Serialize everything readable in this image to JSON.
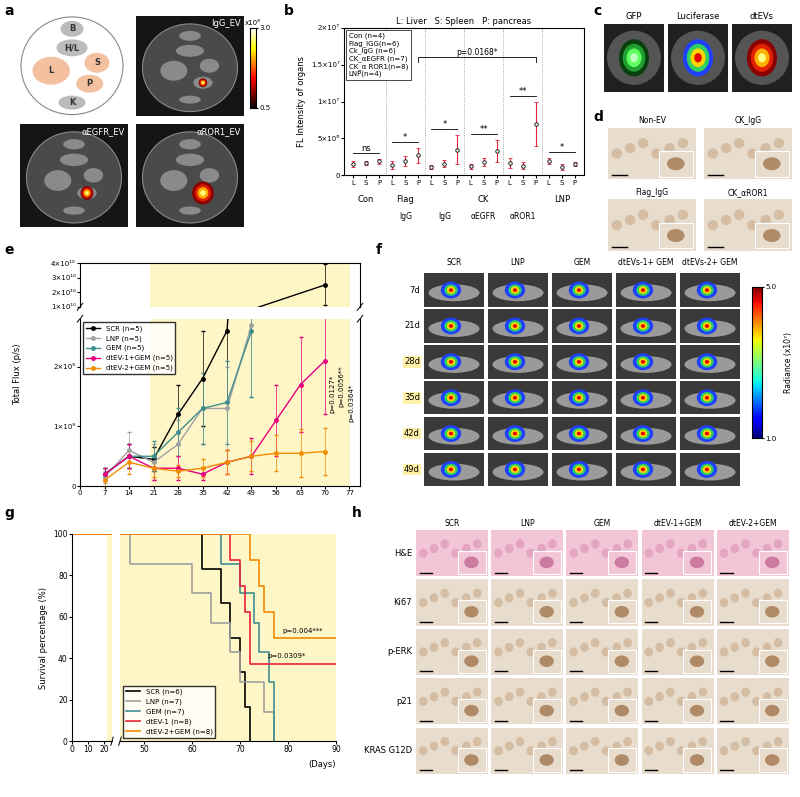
{
  "chart_data": [
    {
      "panel": "b",
      "type": "scatter",
      "header": "L: Liver   S: Spleen   P: pancreas",
      "ylabel": "FL Intensity of organs",
      "categories": [
        "L",
        "S",
        "P",
        "L",
        "S",
        "P",
        "L",
        "S",
        "P",
        "L",
        "S",
        "P",
        "L",
        "S",
        "P",
        "L",
        "S",
        "P"
      ],
      "groups": [
        {
          "label": "Con"
        },
        {
          "label": "Flag",
          "sublabel": "IgG"
        },
        {
          "label": "CK",
          "sublabel": "IgG"
        },
        {
          "label": "CK",
          "sublabel": "αEGFR"
        },
        {
          "label": "CK",
          "sublabel": "αROR1"
        },
        {
          "label": "LNP"
        }
      ],
      "values": [
        1500000,
        1700000,
        1900000,
        1400000,
        1900000,
        2700000,
        1100000,
        1600000,
        3500000,
        1200000,
        1800000,
        3300000,
        1700000,
        1300000,
        7000000,
        2000000,
        1100000,
        1500000
      ],
      "errors": [
        400000,
        300000,
        300000,
        600000,
        700000,
        1000000,
        300000,
        500000,
        2000000,
        300000,
        500000,
        1500000,
        700000,
        500000,
        3000000,
        400000,
        400000,
        300000
      ],
      "color": "#e8203a",
      "ylim": [
        0,
        20000000
      ],
      "yticks": [
        0,
        {
          "value": 5000000,
          "label": "5×10⁶"
        },
        {
          "value": 10000000,
          "label": "1×10⁷"
        },
        {
          "value": 15000000,
          "label": "1.5×10⁷"
        },
        {
          "value": 20000000,
          "label": "2×10⁷"
        }
      ],
      "legend_box": [
        "Con (n=4)",
        "Flag_IGG(n=6)",
        "Ck_IgG (n=6)",
        "CK_αEGFR (n=7)",
        "CK_α ROR1(n=8)",
        "LNP(n=4)"
      ],
      "significance": [
        "ns",
        "*",
        "*",
        "**",
        "**",
        "*"
      ],
      "comparison": "p=0.0168*"
    },
    {
      "panel": "e",
      "type": "line",
      "ylabel": "Total Flux (p/s)",
      "xlim": [
        0,
        80
      ],
      "xticks": [
        0,
        7,
        14,
        21,
        28,
        35,
        42,
        49,
        56,
        63,
        70,
        77
      ],
      "ylim": [
        0,
        40000000000.0
      ],
      "axis_break": [
        2800000000.0,
        10000000000.0
      ],
      "yticks": [
        0,
        {
          "value": 1000000000.0,
          "label": "1×10⁹"
        },
        {
          "value": 2000000000.0,
          "label": "2×10⁹"
        },
        {
          "value": 10000000000.0,
          "label": "1×10¹⁰"
        },
        {
          "value": 20000000000.0,
          "label": "2×10¹⁰"
        },
        {
          "value": 30000000000.0,
          "label": "3×10¹⁰"
        },
        {
          "value": 40000000000.0,
          "label": "4×10¹⁰"
        }
      ],
      "shaded_x": [
        20,
        77
      ],
      "legend": "upper left",
      "series": [
        {
          "name": "SCR (n=5)",
          "color": "#000000",
          "x": [
            7,
            14,
            21,
            28,
            35,
            42,
            70
          ],
          "values": [
            200000000.0,
            500000000.0,
            450000000.0,
            1200000000.0,
            1800000000.0,
            2600000000.0,
            25000000000.0
          ],
          "errors": [
            100000000.0,
            200000000.0,
            200000000.0,
            500000000.0,
            800000000.0,
            1200000000.0,
            14000000000.0
          ]
        },
        {
          "name": "LNP (n=5)",
          "color": "#a0a0a0",
          "x": [
            7,
            14,
            21,
            28,
            35,
            42,
            49
          ],
          "values": [
            150000000.0,
            600000000.0,
            400000000.0,
            700000000.0,
            1300000000.0,
            1300000000.0,
            2700000000.0
          ],
          "errors": [
            100000000.0,
            300000000.0,
            300000000.0,
            400000000.0,
            600000000.0,
            700000000.0,
            1200000000.0
          ]
        },
        {
          "name": "GEM (n=5)",
          "color": "#3f8f8f",
          "x": [
            7,
            14,
            21,
            28,
            35,
            42,
            49
          ],
          "values": [
            200000000.0,
            500000000.0,
            500000000.0,
            900000000.0,
            1300000000.0,
            1400000000.0,
            2600000000.0
          ],
          "errors": [
            100000000.0,
            200000000.0,
            250000000.0,
            400000000.0,
            600000000.0,
            700000000.0,
            1100000000.0
          ]
        },
        {
          "name": "dtEV-1+GEM (n=5)",
          "color": "#e6007e",
          "x": [
            7,
            14,
            21,
            28,
            35,
            42,
            49,
            56,
            63,
            70
          ],
          "values": [
            200000000.0,
            500000000.0,
            300000000.0,
            300000000.0,
            200000000.0,
            400000000.0,
            500000000.0,
            1100000000.0,
            1700000000.0,
            2100000000.0
          ],
          "errors": [
            100000000.0,
            200000000.0,
            200000000.0,
            200000000.0,
            100000000.0,
            200000000.0,
            300000000.0,
            600000000.0,
            800000000.0,
            900000000.0
          ]
        },
        {
          "name": "dtEV-2+GEM (n=5)",
          "color": "#f08c00",
          "x": [
            7,
            14,
            21,
            28,
            35,
            42,
            49,
            56,
            63,
            70
          ],
          "values": [
            100000000.0,
            400000000.0,
            300000000.0,
            250000000.0,
            300000000.0,
            400000000.0,
            500000000.0,
            550000000.0,
            550000000.0,
            580000000.0
          ],
          "errors": [
            100000000.0,
            200000000.0,
            150000000.0,
            100000000.0,
            150000000.0,
            200000000.0,
            250000000.0,
            300000000.0,
            400000000.0,
            400000000.0
          ]
        }
      ],
      "p_values": [
        "p=0.0127*",
        "p=0.0056**",
        "p=0.0364*"
      ]
    },
    {
      "panel": "g",
      "type": "line",
      "line_style": "steps",
      "xlabel": "(Days)",
      "ylabel": "Survival percentage (%)",
      "xlim": [
        0,
        90
      ],
      "axis_break": [
        25,
        45
      ],
      "xticks": [
        0,
        10,
        20,
        50,
        60,
        70,
        80,
        90
      ],
      "ylim": [
        0,
        100
      ],
      "yticks": [
        0,
        20,
        40,
        60,
        80,
        100
      ],
      "shaded_x": [
        22,
        90
      ],
      "legend": "lower left",
      "series": [
        {
          "name": "SCR (n=6)",
          "color": "#000000",
          "x": [
            0,
            62,
            66,
            68,
            70,
            71,
            72
          ],
          "values": [
            100,
            83.3,
            66.7,
            50,
            33.3,
            16.7,
            0
          ]
        },
        {
          "name": "LNP (n=7)",
          "color": "#a0a0a0",
          "x": [
            0,
            47,
            60,
            64,
            68,
            70,
            75,
            77
          ],
          "values": [
            100,
            85.7,
            71.4,
            57.1,
            42.9,
            28.6,
            14.3,
            0
          ]
        },
        {
          "name": "GEM (n=7)",
          "color": "#3f8f8f",
          "x": [
            0,
            66,
            70,
            73,
            74,
            76,
            77
          ],
          "values": [
            100,
            85.7,
            71.4,
            57.1,
            42.9,
            28.6,
            0
          ]
        },
        {
          "name": "dtEV-1 (n=8)",
          "color": "#e8203a",
          "x": [
            0,
            68,
            70,
            71,
            72,
            90
          ],
          "values": [
            100,
            87.5,
            75,
            62.5,
            37.5,
            37.5
          ]
        },
        {
          "name": "dtEV-2+GEM (n=8)",
          "color": "#f08c00",
          "x": [
            0,
            72,
            74,
            75,
            77,
            90
          ],
          "values": [
            100,
            87.5,
            75,
            62.5,
            50,
            50
          ]
        }
      ],
      "p_values": [
        "p=0.004***",
        "p=0.0309*"
      ]
    }
  ],
  "image_panels": [
    {
      "panel": "a",
      "diagram_labels": [
        "B",
        "H/L",
        "L",
        "S",
        "P",
        "K"
      ],
      "images": [
        "IgG_EV",
        "αEGFR_EV",
        "αROR1_EV"
      ],
      "colorbar": {
        "range": [
          0.5,
          3.0
        ],
        "ticks": [
          0.5,
          3.0
        ],
        "label": "x10⁸"
      }
    },
    {
      "panel": "c",
      "images": [
        "GFP",
        "Luciferase",
        "dtEVs"
      ]
    },
    {
      "panel": "d",
      "images": [
        "Non-EV",
        "CK_IgG",
        "Flag_IgG",
        "CK_αROR1"
      ]
    },
    {
      "panel": "f",
      "columns": [
        "SCR",
        "LNP",
        "GEM",
        "dtEVs-1+ GEM",
        "dtEVs-2+ GEM"
      ],
      "rows": [
        "7d",
        "21d",
        "28d",
        "35d",
        "42d",
        "49d"
      ],
      "highlighted_rows": [
        "28d",
        "35d",
        "42d",
        "49d"
      ],
      "colorbar": {
        "range": [
          1.0,
          5.0
        ],
        "ticks": [
          1.0,
          5.0
        ],
        "label": "Radiance (x10⁷)"
      }
    },
    {
      "panel": "h",
      "columns": [
        "SCR",
        "LNP",
        "GEM",
        "dtEV-1+GEM",
        "dtEV-2+GEM"
      ],
      "rows": [
        "H&E",
        "Ki67",
        "p-ERK",
        "p21",
        "KRAS G12D"
      ]
    }
  ]
}
